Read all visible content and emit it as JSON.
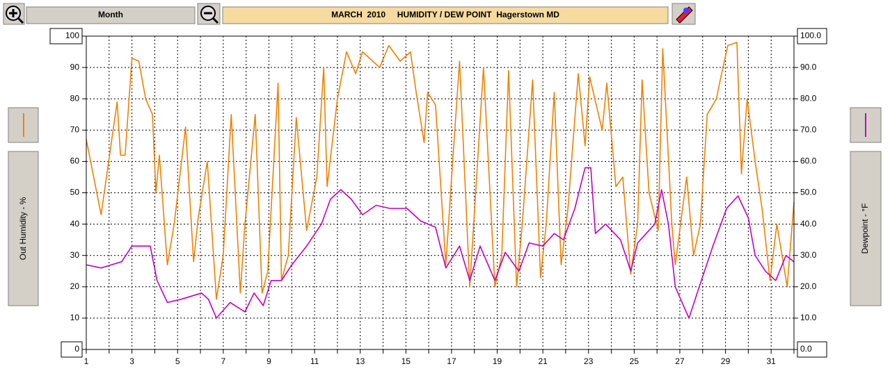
{
  "chart_data": {
    "type": "line",
    "button_label": "Month",
    "title": "MARCH  2010     HUMIDITY / DEW POINT  Hagerstown MD",
    "xlim": [
      1,
      32
    ],
    "xticks": [
      1,
      3,
      5,
      7,
      9,
      11,
      13,
      15,
      17,
      19,
      21,
      23,
      25,
      27,
      29,
      31
    ],
    "x_minor_ticks": [
      2,
      4,
      6,
      8,
      10,
      12,
      14,
      16,
      18,
      20,
      22,
      24,
      26,
      28,
      30,
      32
    ],
    "ylim": [
      0,
      100
    ],
    "yticks": [
      0,
      10,
      20,
      30,
      40,
      50,
      60,
      70,
      80,
      90,
      100
    ],
    "y2lim": [
      0,
      100
    ],
    "y2ticks": [
      {
        "value": 0,
        "label": "0.0"
      },
      {
        "value": 10,
        "label": "10.0"
      },
      {
        "value": 20,
        "label": "20.0"
      },
      {
        "value": 30,
        "label": "30.0"
      },
      {
        "value": 40,
        "label": "40.0"
      },
      {
        "value": 50,
        "label": "50.0"
      },
      {
        "value": 60,
        "label": "60.0"
      },
      {
        "value": 70,
        "label": "70.0"
      },
      {
        "value": 80,
        "label": "80.0"
      },
      {
        "value": 90,
        "label": "90.0"
      },
      {
        "value": 100,
        "label": "100.0"
      }
    ],
    "grid": true,
    "series": [
      {
        "name": "Out Humidity - %",
        "color": "#f08000",
        "x": [
          1,
          1.65,
          2.35,
          2.5,
          2.7,
          3,
          3.3,
          3.6,
          3.9,
          4.05,
          4.2,
          4.55,
          4.85,
          5.35,
          5.7,
          5.9,
          6.3,
          6.7,
          7,
          7.35,
          7.75,
          7.95,
          8.4,
          8.7,
          8.95,
          9.4,
          9.55,
          9.85,
          10.2,
          10.65,
          11.1,
          11.4,
          11.55,
          12,
          12.4,
          12.8,
          13.1,
          13.85,
          14.25,
          14.75,
          15.2,
          15.45,
          15.8,
          15.95,
          16.3,
          16.75,
          17.05,
          17.35,
          17.8,
          18.4,
          18.9,
          19.2,
          19.5,
          19.85,
          20.1,
          20.55,
          20.9,
          21.15,
          21.5,
          21.8,
          22.1,
          22.55,
          22.85,
          23.05,
          23.6,
          23.8,
          24.2,
          24.5,
          24.85,
          25.15,
          25.35,
          25.65,
          26.05,
          26.25,
          26.65,
          26.8,
          27.3,
          27.6,
          27.9,
          28.2,
          28.6,
          28.8,
          29.1,
          29.5,
          29.7,
          29.95,
          30.3,
          30.6,
          30.95,
          31.25,
          31.7,
          32
        ],
        "values": [
          67,
          43,
          79,
          62,
          62,
          93,
          92,
          80,
          75,
          50,
          62,
          27,
          40,
          71,
          28,
          42,
          60,
          16,
          30,
          75,
          18,
          40,
          75,
          18,
          25,
          85,
          22,
          30,
          74,
          38,
          55,
          90,
          52,
          80,
          95,
          88,
          95,
          90,
          97,
          92,
          95,
          82,
          66,
          82,
          78,
          27,
          60,
          92,
          20,
          90,
          20,
          30,
          89,
          20,
          40,
          86,
          23,
          40,
          82,
          27,
          45,
          88,
          65,
          87,
          70,
          85,
          52,
          55,
          24,
          40,
          86,
          50,
          38,
          96,
          40,
          27,
          55,
          30,
          40,
          75,
          80,
          87,
          97,
          98,
          56,
          80,
          60,
          45,
          22,
          40,
          20,
          47
        ]
      },
      {
        "name": "Dewpoint - °F",
        "color": "#c000c0",
        "axis": "y2",
        "x": [
          1,
          1.65,
          2.55,
          3,
          3.8,
          4.1,
          4.55,
          5.15,
          6.05,
          6.35,
          6.7,
          7.3,
          7.95,
          8.35,
          8.75,
          9.1,
          9.55,
          10,
          10.65,
          11.3,
          11.7,
          12.15,
          12.6,
          13.1,
          13.7,
          14.3,
          15.05,
          15.65,
          16.3,
          16.75,
          17.35,
          17.8,
          18.25,
          18.9,
          19.35,
          19.95,
          20.4,
          21,
          21.5,
          21.9,
          22.4,
          22.85,
          23.1,
          23.3,
          23.75,
          24.4,
          24.85,
          25.15,
          25.9,
          26.2,
          26.5,
          26.8,
          27.1,
          27.4,
          27.85,
          28.45,
          29.05,
          29.55,
          30,
          30.3,
          30.75,
          31.2,
          31.65,
          32
        ],
        "values": [
          27,
          26,
          28,
          33,
          33,
          22,
          15,
          16,
          18,
          16,
          10,
          15,
          12,
          18,
          14,
          22,
          22,
          27,
          33,
          40,
          48,
          51,
          48,
          43,
          46,
          45,
          45,
          41,
          39,
          26,
          33,
          22,
          33,
          22,
          31,
          25,
          34,
          33,
          37,
          35,
          45,
          58,
          58,
          37,
          40,
          35,
          25,
          34,
          40,
          51,
          40,
          20,
          15,
          10,
          20,
          33,
          45,
          49,
          42,
          30,
          25,
          22,
          30,
          28
        ]
      }
    ]
  }
}
